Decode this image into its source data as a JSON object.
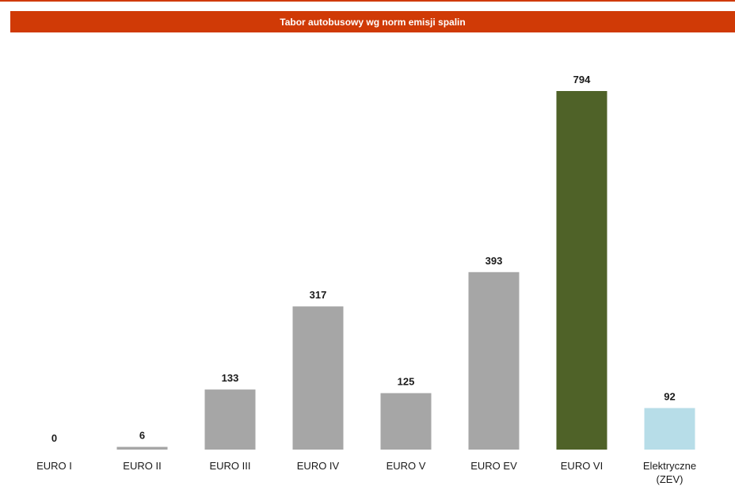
{
  "chart_data": {
    "type": "bar",
    "title": "Tabor autobusowy wg norm emisji spalin",
    "categories": [
      [
        "EURO I"
      ],
      [
        "EURO II"
      ],
      [
        "EURO III"
      ],
      [
        "EURO IV"
      ],
      [
        "EURO V"
      ],
      [
        "EURO EV"
      ],
      [
        "EURO VI"
      ],
      [
        "Elektryczne",
        "(ZEV)"
      ]
    ],
    "values": [
      0,
      6,
      133,
      317,
      125,
      393,
      794,
      92
    ],
    "colors": [
      "#a6a6a6",
      "#a6a6a6",
      "#a6a6a6",
      "#a6a6a6",
      "#a6a6a6",
      "#a6a6a6",
      "#4f6228",
      "#b7dde8"
    ],
    "xlabel": "",
    "ylabel": "",
    "ylim": [
      0,
      794
    ],
    "grid": false,
    "legend": "none"
  },
  "colors": {
    "accent": "#d03a06",
    "bar_default": "#a6a6a6",
    "bar_euro_vi": "#4f6228",
    "bar_electric": "#b7dde8"
  }
}
